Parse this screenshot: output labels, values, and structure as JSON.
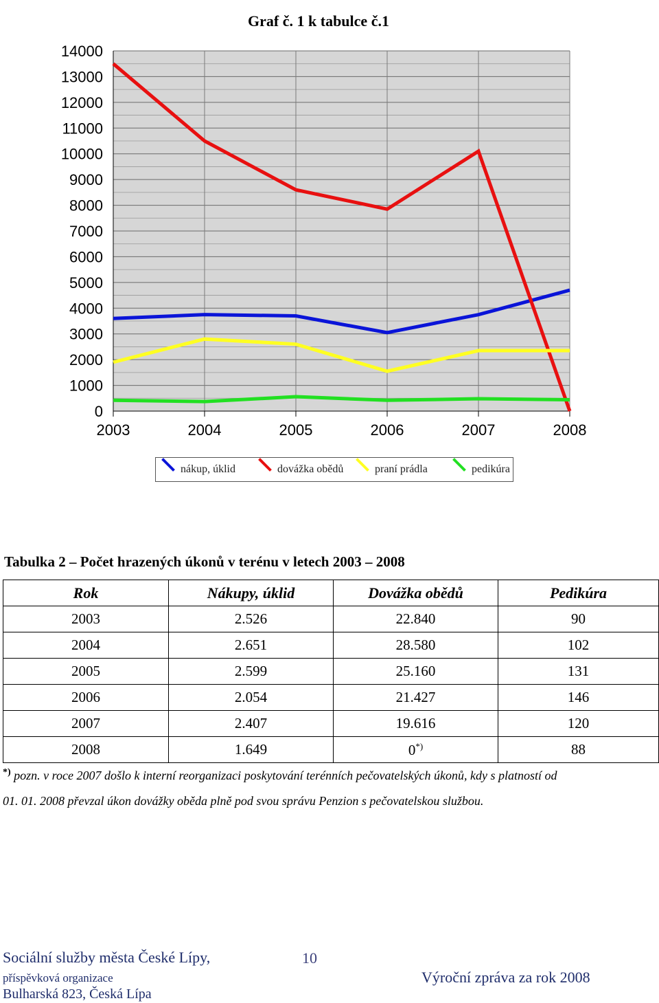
{
  "chart_data": {
    "type": "line",
    "title": "Graf č. 1 k tabulce č.1",
    "x": [
      "2003",
      "2004",
      "2005",
      "2006",
      "2007",
      "2008"
    ],
    "ylim": [
      0,
      14000
    ],
    "yticks": [
      0,
      1000,
      2000,
      3000,
      4000,
      5000,
      6000,
      7000,
      8000,
      9000,
      10000,
      11000,
      12000,
      13000,
      14000
    ],
    "grid": true,
    "legend_position": "bottom",
    "series": [
      {
        "name": "nákup, úklid",
        "color": "#0a14d8",
        "values": [
          3600,
          3750,
          3700,
          3050,
          3750,
          4700
        ]
      },
      {
        "name": "dovážka obědů",
        "color": "#e81010",
        "values": [
          13500,
          10500,
          8600,
          7850,
          10100,
          0
        ]
      },
      {
        "name": "praní prádla",
        "color": "#ffff22",
        "values": [
          1900,
          2800,
          2600,
          1550,
          2350,
          2350
        ]
      },
      {
        "name": "pedikúra",
        "color": "#22e022",
        "values": [
          420,
          370,
          560,
          420,
          480,
          440
        ]
      }
    ]
  },
  "table": {
    "caption": "Tabulka 2 – Počet hrazených úkonů v terénu v letech 2003 – 2008",
    "headers": [
      "Rok",
      "Nákupy, úklid",
      "Dovážka obědů",
      "Pedikúra"
    ],
    "rows": [
      [
        "2003",
        "2.526",
        "22.840",
        "90"
      ],
      [
        "2004",
        "2.651",
        "28.580",
        "102"
      ],
      [
        "2005",
        "2.599",
        "25.160",
        "131"
      ],
      [
        "2006",
        "2.054",
        "21.427",
        "146"
      ],
      [
        "2007",
        "2.407",
        "19.616",
        "120"
      ],
      [
        "2008",
        "1.649",
        "0",
        "88"
      ]
    ],
    "footnote_mark": "*)",
    "note_line1": "pozn. v roce 2007 došlo k interní reorganizaci poskytování terénních pečovatelských úkonů, kdy s platností od",
    "note_line2": "01. 01. 2008 převzal úkon dovážky oběda plně pod svou správu Penzion s pečovatelskou službou."
  },
  "footer": {
    "org_name": "Sociální služby města České Lípy,",
    "org_type": "příspěvková organizace",
    "address": "Bulharská 823, Česká Lípa",
    "page_number": "10",
    "report_title": "Výroční zpráva za rok 2008"
  }
}
